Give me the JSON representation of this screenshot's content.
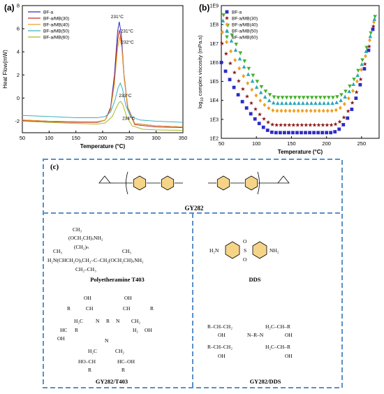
{
  "panel_labels": {
    "a": "(a)",
    "b": "(b)",
    "c": "(c)"
  },
  "chart_data": [
    {
      "type": "line",
      "panel": "(a)",
      "xlabel": "Temperature (°C)",
      "ylabel": "Heat Flow(mW)",
      "xlim": [
        50,
        350
      ],
      "ylim": [
        -3,
        8
      ],
      "xticks": [
        50,
        100,
        150,
        200,
        250,
        300,
        350
      ],
      "yticks": [
        -2,
        0,
        2,
        4,
        6,
        8
      ],
      "legend_position": "top-left",
      "grid": false,
      "series": [
        {
          "name": "BF-a",
          "color": "#2c2cc6",
          "peak_label": "231°C",
          "points": [
            [
              50,
              -1.9
            ],
            [
              100,
              -2.0
            ],
            [
              150,
              -2.05
            ],
            [
              190,
              -2.1
            ],
            [
              205,
              -1.9
            ],
            [
              215,
              -0.8
            ],
            [
              222,
              2.0
            ],
            [
              228,
              5.8
            ],
            [
              231,
              6.6
            ],
            [
              235,
              5.5
            ],
            [
              240,
              2.0
            ],
            [
              247,
              -0.8
            ],
            [
              260,
              -2.2
            ],
            [
              300,
              -2.4
            ],
            [
              350,
              -2.5
            ]
          ]
        },
        {
          "name": "BF-a/MB(30)",
          "color": "#c0302e",
          "peak_label": "231°C",
          "points": [
            [
              50,
              -1.95
            ],
            [
              100,
              -2.05
            ],
            [
              150,
              -2.1
            ],
            [
              190,
              -2.1
            ],
            [
              205,
              -1.9
            ],
            [
              215,
              -0.9
            ],
            [
              222,
              1.6
            ],
            [
              228,
              5.0
            ],
            [
              231,
              5.9
            ],
            [
              235,
              4.9
            ],
            [
              240,
              1.8
            ],
            [
              247,
              -0.9
            ],
            [
              260,
              -2.3
            ],
            [
              300,
              -2.5
            ],
            [
              350,
              -2.55
            ]
          ]
        },
        {
          "name": "BF-a/MB(40)",
          "color": "#f0a020",
          "peak_label": "232°C",
          "points": [
            [
              50,
              -1.9
            ],
            [
              100,
              -2.0
            ],
            [
              150,
              -2.05
            ],
            [
              190,
              -2.05
            ],
            [
              205,
              -1.9
            ],
            [
              215,
              -1.0
            ],
            [
              222,
              1.2
            ],
            [
              228,
              4.4
            ],
            [
              232,
              5.3
            ],
            [
              236,
              4.3
            ],
            [
              241,
              1.4
            ],
            [
              248,
              -1.0
            ],
            [
              260,
              -2.2
            ],
            [
              300,
              -2.4
            ],
            [
              350,
              -2.5
            ]
          ]
        },
        {
          "name": "BF-a/MB(50)",
          "color": "#3cb0c0",
          "peak_label": "233°C",
          "points": [
            [
              50,
              -1.5
            ],
            [
              100,
              -1.6
            ],
            [
              150,
              -1.7
            ],
            [
              190,
              -1.7
            ],
            [
              205,
              -1.6
            ],
            [
              215,
              -1.2
            ],
            [
              223,
              -0.2
            ],
            [
              229,
              0.9
            ],
            [
              233,
              1.3
            ],
            [
              237,
              0.8
            ],
            [
              243,
              -0.6
            ],
            [
              252,
              -1.6
            ],
            [
              270,
              -1.9
            ],
            [
              300,
              -2.0
            ],
            [
              350,
              -2.1
            ]
          ]
        },
        {
          "name": "BF-a/MB(60)",
          "color": "#aab820",
          "peak_label": "234°C",
          "points": [
            [
              50,
              -2.0
            ],
            [
              100,
              -2.1
            ],
            [
              150,
              -2.2
            ],
            [
              190,
              -2.25
            ],
            [
              205,
              -2.15
            ],
            [
              218,
              -1.6
            ],
            [
              226,
              -0.8
            ],
            [
              231,
              -0.35
            ],
            [
              234,
              -0.3
            ],
            [
              238,
              -0.6
            ],
            [
              245,
              -1.6
            ],
            [
              255,
              -2.4
            ],
            [
              275,
              -2.7
            ],
            [
              300,
              -2.75
            ],
            [
              350,
              -2.8
            ]
          ]
        }
      ]
    },
    {
      "type": "scatter",
      "panel": "(b)",
      "xlabel": "Temperature (°C)",
      "ylabel": "log10 complex viscosity (mPa.s)",
      "ylabel_main": "log",
      "ylabel_sub": "10",
      "ylabel_rest": " complex viscosity (mPa.s)",
      "xlim": [
        50,
        275
      ],
      "ylim": [
        100,
        1000000000
      ],
      "log_y": true,
      "xticks": [
        50,
        100,
        150,
        200,
        250
      ],
      "yticks": [
        "1E2",
        "1E3",
        "1E4",
        "1E5",
        "1E6",
        "1E7",
        "1E8",
        "1E9"
      ],
      "legend_position": "top-left",
      "grid": false,
      "series": [
        {
          "name": "BF-a",
          "color": "#2c2cc6",
          "marker": "square",
          "floor_exp": 2.3,
          "left_exp": 6.0,
          "right_exp": 9.0
        },
        {
          "name": "BF-a/MB(30)",
          "color": "#8b1a1a",
          "marker": "star",
          "floor_exp": 2.7,
          "left_exp": 7.0,
          "right_exp": 9.1
        },
        {
          "name": "BF-a/MB(40)",
          "color": "#f0a020",
          "marker": "diamond",
          "floor_exp": 3.45,
          "left_exp": 7.6,
          "right_exp": 9.2
        },
        {
          "name": "BF-a/MB(50)",
          "color": "#2aa8b8",
          "marker": "triangle-up",
          "floor_exp": 3.85,
          "left_exp": 8.2,
          "right_exp": 9.3
        },
        {
          "name": "BF-a/MB(60)",
          "color": "#44b02a",
          "marker": "triangle-down",
          "floor_exp": 4.15,
          "left_exp": 8.5,
          "right_exp": 9.4
        }
      ]
    }
  ],
  "structures": {
    "gy282": "GY282",
    "t403": "Polyetheramine T403",
    "dds": "DDS",
    "gy282_t403": "GY282/T403",
    "gy282_dds": "GY282/DDS"
  }
}
